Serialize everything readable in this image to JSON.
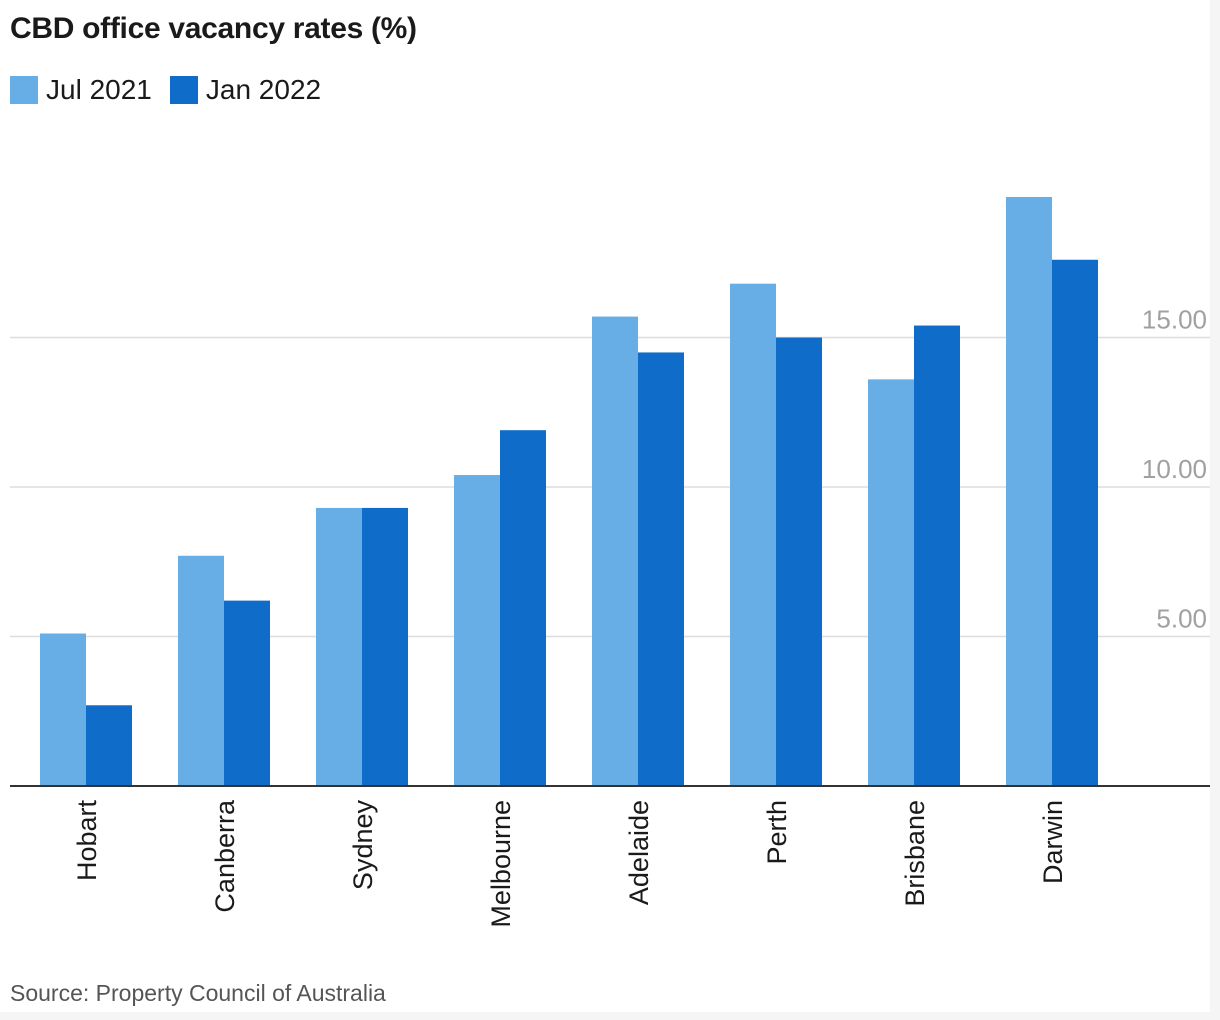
{
  "chart_data": {
    "type": "bar",
    "title": "CBD office vacancy rates (%)",
    "categories": [
      "Hobart",
      "Canberra",
      "Sydney",
      "Melbourne",
      "Adelaide",
      "Perth",
      "Brisbane",
      "Darwin"
    ],
    "series": [
      {
        "name": "Jul 2021",
        "color": "#67aee6",
        "values": [
          5.1,
          7.7,
          9.3,
          10.4,
          15.7,
          16.8,
          13.6,
          19.7
        ]
      },
      {
        "name": "Jan 2022",
        "color": "#0f6cc8",
        "values": [
          2.7,
          6.2,
          9.3,
          11.9,
          14.5,
          15.0,
          15.4,
          17.6
        ]
      }
    ],
    "yticks": [
      {
        "value": 5,
        "label": "5.00"
      },
      {
        "value": 10,
        "label": "10.00"
      },
      {
        "value": 15,
        "label": "15.00"
      }
    ],
    "ylim": [
      0,
      22
    ],
    "y_axis_position": "right",
    "legend_position": "top-left",
    "grid": true,
    "source": "Source: Property Council of Australia"
  }
}
